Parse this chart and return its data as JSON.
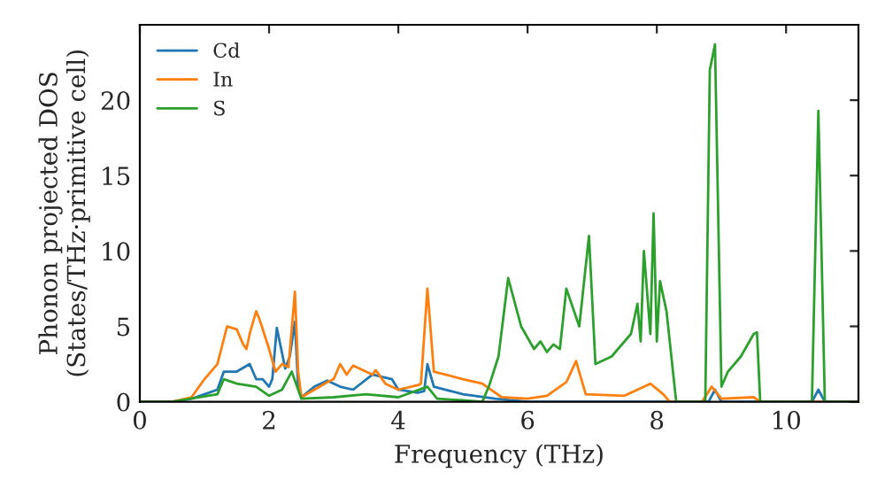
{
  "chart_data": {
    "type": "line",
    "xlabel": "Frequency (THz)",
    "ylabel": "Phonon projected DOS\n(States/THz·primitive cell)",
    "xlim": [
      0,
      11.12
    ],
    "ylim": [
      0,
      25
    ],
    "xticks": [
      0,
      2,
      4,
      6,
      8,
      10
    ],
    "yticks": [
      0,
      5,
      10,
      15,
      20
    ],
    "grid": false,
    "legend": "top left",
    "marker": "none",
    "line_style": "solid",
    "series": [
      {
        "name": "Cd",
        "color": "#1f77b4",
        "x": [
          0,
          0.5,
          0.8,
          1.0,
          1.2,
          1.3,
          1.5,
          1.7,
          1.8,
          1.9,
          2.0,
          2.05,
          2.12,
          2.25,
          2.32,
          2.4,
          2.45,
          2.5,
          2.7,
          2.9,
          3.1,
          3.3,
          3.6,
          3.9,
          4.0,
          4.3,
          4.4,
          4.45,
          4.55,
          5.0,
          5.5,
          6.0,
          8.8,
          8.9,
          9.0,
          10.4,
          10.5,
          10.6,
          11.1
        ],
        "values": [
          0,
          0,
          0.2,
          0.5,
          0.8,
          2.0,
          2.0,
          2.5,
          1.5,
          1.5,
          1.0,
          1.5,
          4.9,
          2.2,
          3.0,
          5.3,
          1.0,
          0.3,
          1.0,
          1.4,
          1.0,
          0.8,
          1.8,
          1.5,
          0.8,
          0.6,
          0.7,
          2.5,
          1.0,
          0.5,
          0.2,
          0,
          0,
          0.8,
          0,
          0,
          0.8,
          0,
          0
        ]
      },
      {
        "name": "In",
        "color": "#ff7f0e",
        "x": [
          0,
          0.5,
          0.8,
          1.0,
          1.2,
          1.35,
          1.5,
          1.6,
          1.65,
          1.7,
          1.8,
          1.85,
          2.0,
          2.1,
          2.2,
          2.3,
          2.4,
          2.45,
          2.5,
          2.7,
          2.9,
          3.0,
          3.1,
          3.2,
          3.3,
          3.6,
          3.65,
          3.8,
          4.0,
          4.3,
          4.35,
          4.45,
          4.55,
          5.0,
          5.3,
          5.6,
          6.0,
          6.3,
          6.6,
          6.75,
          6.9,
          7.5,
          7.7,
          7.9,
          8.1,
          8.2,
          8.7,
          8.85,
          9.0,
          9.5,
          9.6,
          11.1
        ],
        "values": [
          0,
          0,
          0.3,
          1.5,
          2.5,
          5.0,
          4.8,
          3.8,
          3.5,
          4.5,
          6.0,
          5.5,
          3.5,
          2.0,
          2.5,
          2.3,
          7.3,
          2.0,
          0.3,
          0.8,
          1.3,
          1.5,
          2.5,
          1.8,
          2.4,
          1.8,
          2.1,
          1.2,
          0.8,
          1.1,
          1.2,
          7.5,
          2.0,
          1.5,
          1.2,
          0.3,
          0.2,
          0.4,
          1.3,
          2.7,
          0.5,
          0.4,
          0.8,
          1.2,
          0.5,
          0,
          0,
          1.0,
          0.2,
          0.3,
          0,
          0
        ]
      },
      {
        "name": "S",
        "color": "#2ca02c",
        "x": [
          0,
          0.5,
          1.2,
          1.3,
          1.5,
          1.8,
          2.0,
          2.2,
          2.35,
          2.5,
          3.0,
          3.5,
          4.0,
          4.45,
          4.6,
          5.0,
          5.3,
          5.4,
          5.55,
          5.7,
          5.9,
          6.1,
          6.2,
          6.3,
          6.4,
          6.5,
          6.6,
          6.8,
          6.95,
          7.05,
          7.3,
          7.5,
          7.6,
          7.7,
          7.75,
          7.8,
          7.9,
          7.95,
          8.0,
          8.05,
          8.15,
          8.3,
          8.75,
          8.82,
          8.9,
          9.0,
          9.1,
          9.3,
          9.5,
          9.55,
          9.6,
          10.4,
          10.5,
          10.6,
          11.1
        ],
        "values": [
          0,
          0,
          0.5,
          1.5,
          1.2,
          1.0,
          0.4,
          0.8,
          2.0,
          0.2,
          0.3,
          0.5,
          0.3,
          1.0,
          0.2,
          0.1,
          0,
          1.0,
          3.0,
          8.2,
          5.0,
          3.5,
          4.0,
          3.3,
          3.8,
          3.5,
          7.5,
          5.0,
          11.0,
          2.5,
          3.0,
          4.0,
          4.5,
          6.5,
          4.0,
          10.0,
          4.5,
          12.5,
          4.0,
          8.0,
          6.0,
          0,
          0,
          22.0,
          23.7,
          1.0,
          2.0,
          3.0,
          4.5,
          4.6,
          0,
          0,
          19.3,
          0,
          0
        ]
      }
    ]
  }
}
